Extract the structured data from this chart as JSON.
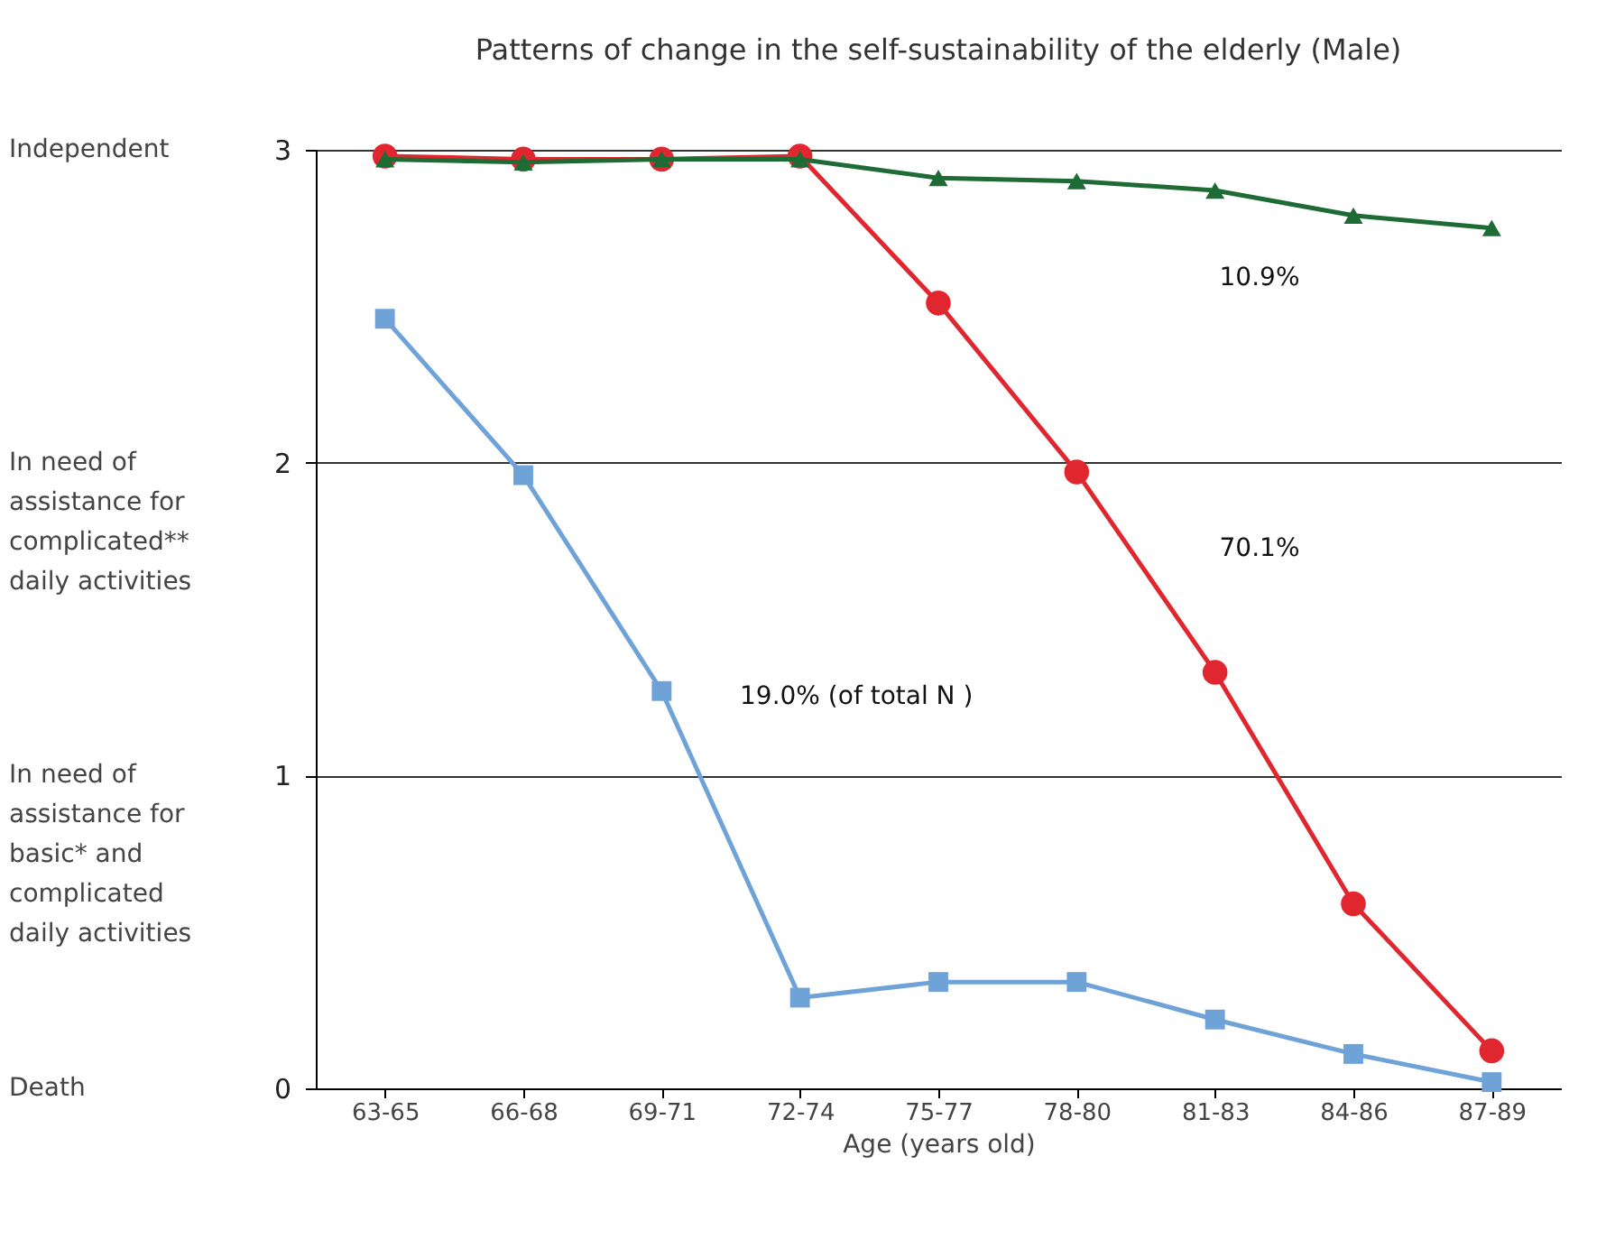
{
  "chart_data": {
    "type": "line",
    "title": "Patterns of change in the self-sustainability of the elderly (Male)",
    "xlabel": "Age (years old)",
    "categories": [
      "63-65",
      "66-68",
      "69-71",
      "72-74",
      "75-77",
      "78-80",
      "81-83",
      "84-86",
      "87-89"
    ],
    "series": [
      {
        "color": "#6fa3d8",
        "marker": "square",
        "values": [
          2.46,
          1.96,
          1.27,
          0.29,
          0.34,
          0.34,
          0.22,
          0.11,
          0.02
        ]
      },
      {
        "color": "#e0262f",
        "marker": "circle",
        "values": [
          2.98,
          2.97,
          2.97,
          2.98,
          2.51,
          1.97,
          1.33,
          0.59,
          0.12
        ]
      },
      {
        "color": "#1e6b35",
        "marker": "triangle",
        "values": [
          2.97,
          2.96,
          2.97,
          2.97,
          2.91,
          2.9,
          2.87,
          2.79,
          2.75
        ]
      }
    ],
    "ylim": [
      0,
      3
    ],
    "yticks": [
      0,
      1,
      2,
      3
    ],
    "grid": "y",
    "line_style": "solid",
    "annotations": [
      "Independent",
      "In need of\nassistance for\ncomplicated**\ndaily activities",
      "In need of\nassistance for\nbasic* and\ncomplicated\ndaily activities",
      "Death",
      "10.9%",
      "70.1%",
      "19.0% (of total N )"
    ]
  }
}
